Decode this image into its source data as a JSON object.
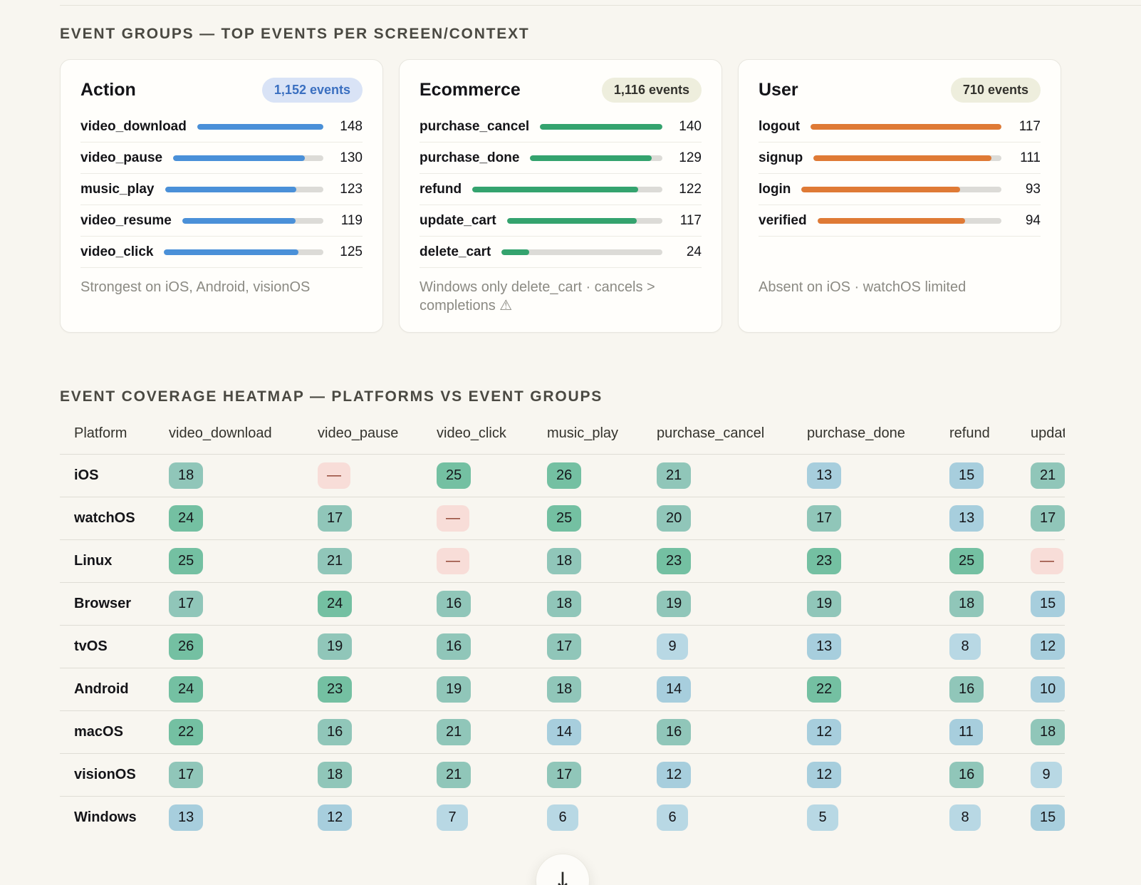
{
  "ui": {
    "section_event_groups_title": "EVENT GROUPS — TOP EVENTS PER SCREEN/CONTEXT",
    "section_heatmap_title": "EVENT COVERAGE HEATMAP — PLATFORMS VS EVENT GROUPS",
    "scroll_button_glyph": "↓"
  },
  "chart_data": [
    {
      "type": "bar",
      "group": "Action",
      "badge": "1,152 events",
      "badge_bg": "#d9e3f6",
      "badge_fg": "#3a6fc0",
      "bar_color": "#4a90d8",
      "track_color": "#dcdbd7",
      "categories": [
        "video_download",
        "video_pause",
        "music_play",
        "video_resume",
        "video_click"
      ],
      "values": [
        148,
        130,
        123,
        119,
        125
      ],
      "note": "Strongest on iOS, Android, visionOS"
    },
    {
      "type": "bar",
      "group": "Ecommerce",
      "badge": "1,116 events",
      "badge_bg": "#eeeedd",
      "badge_fg": "#32312c",
      "bar_color": "#34a36e",
      "track_color": "#dcdbd7",
      "categories": [
        "purchase_cancel",
        "purchase_done",
        "refund",
        "update_cart",
        "delete_cart"
      ],
      "values": [
        140,
        129,
        122,
        117,
        24
      ],
      "note": "Windows only delete_cart · cancels > completions ⚠"
    },
    {
      "type": "bar",
      "group": "User",
      "badge": "710 events",
      "badge_bg": "#eeeedd",
      "badge_fg": "#32312c",
      "bar_color": "#df7a35",
      "track_color": "#dcdbd7",
      "categories": [
        "logout",
        "signup",
        "login",
        "verified"
      ],
      "values": [
        117,
        111,
        93,
        94
      ],
      "note": "Absent on iOS · watchOS limited"
    },
    {
      "type": "heatmap",
      "columns": [
        "Platform",
        "video_download",
        "video_pause",
        "video_click",
        "music_play",
        "purchase_cancel",
        "purchase_done",
        "refund",
        "update_cart"
      ],
      "rows": [
        {
          "platform": "iOS",
          "values": [
            18,
            null,
            25,
            26,
            21,
            13,
            15,
            21
          ]
        },
        {
          "platform": "watchOS",
          "values": [
            24,
            17,
            null,
            25,
            20,
            17,
            13,
            17
          ]
        },
        {
          "platform": "Linux",
          "values": [
            25,
            21,
            null,
            18,
            23,
            23,
            25,
            null
          ]
        },
        {
          "platform": "Browser",
          "values": [
            17,
            24,
            16,
            18,
            19,
            19,
            18,
            15
          ]
        },
        {
          "platform": "tvOS",
          "values": [
            26,
            19,
            16,
            17,
            9,
            13,
            8,
            12
          ]
        },
        {
          "platform": "Android",
          "values": [
            24,
            23,
            19,
            18,
            14,
            22,
            16,
            10
          ]
        },
        {
          "platform": "macOS",
          "values": [
            22,
            16,
            21,
            14,
            16,
            12,
            11,
            18
          ]
        },
        {
          "platform": "visionOS",
          "values": [
            17,
            18,
            21,
            17,
            12,
            12,
            16,
            9
          ]
        },
        {
          "platform": "Windows",
          "values": [
            13,
            12,
            7,
            6,
            6,
            5,
            8,
            15
          ]
        }
      ],
      "palette": {
        "high": "#74c0a2",
        "mid": "#90c6b9",
        "low": "#a7cedd",
        "very_low": "#b8d8e4",
        "value_fg": "#15161a",
        "missing_bg": "#f8ddd8",
        "missing_fg": "#8a3a28",
        "missing_glyph": "—"
      },
      "thresholds": {
        "high_min": 22,
        "mid_min": 16,
        "low_min": 10
      }
    }
  ]
}
